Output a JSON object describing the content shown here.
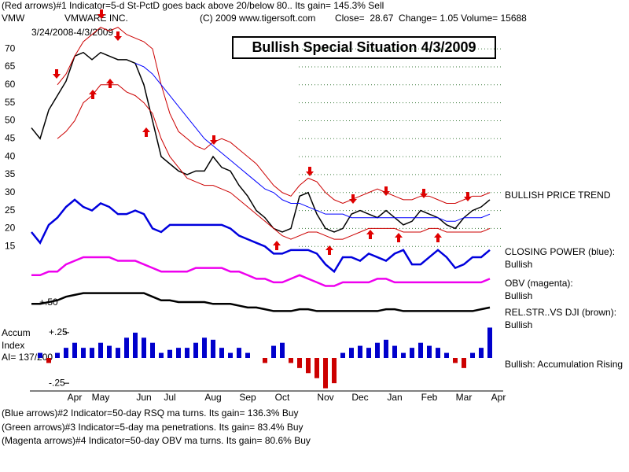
{
  "chart_data": {
    "type": "line",
    "header": [
      "(Red arrows)#1 Indicator=5-d St-PctD goes back above 20/below 80.. Its gain= 145.3% Sell",
      "VMW",
      "VMWARE INC.",
      "(C) 2009 www.tigersoft.com",
      "Close=  28.67  Change= 1.05 Volume= 15688",
      "3/24/2008-4/3/2009"
    ],
    "title": "Bullish Special Situation 4/3/2009",
    "annotations": [
      "BULLISH PRICE TREND",
      "CLOSING POWER (blue):",
      "Bullish",
      "OBV (magenta):",
      "Bullish",
      "REL.STR..VS DJI (brown):",
      "Bullish",
      "Bullish: Accumulation Rising",
      "Accum",
      "Index",
      "AI= 137/200",
      "+.50"
    ],
    "footer": [
      "(Blue arrows)#2 Indicator=50-day RSQ ma turns. Its gain= 136.3% Buy",
      "(Green arrows)#3 Indicator=5-day ma penetrations. Its gain= 83.4% Buy",
      "(Magenta arrows)#4 Indicator=50-day OBV ma turns. Its gain= 80.6% Buy"
    ],
    "categories": [
      null,
      null,
      null,
      null,
      null,
      "Apr",
      null,
      null,
      "May",
      null,
      null,
      null,
      null,
      "Jun",
      null,
      null,
      "Jul",
      null,
      null,
      null,
      null,
      "Aug",
      null,
      null,
      null,
      "Sep",
      null,
      null,
      null,
      "Oct",
      null,
      null,
      null,
      null,
      "Nov",
      null,
      null,
      null,
      "Dec",
      null,
      null,
      null,
      "Jan",
      null,
      null,
      null,
      "Feb",
      null,
      null,
      null,
      "Mar",
      null,
      null,
      null,
      "Apr"
    ],
    "ylim": [
      -4,
      72
    ],
    "yticks": [
      15,
      20,
      25,
      30,
      35,
      40,
      45,
      50,
      55,
      60,
      65,
      70
    ],
    "y2lim": [
      -0.35,
      0.35
    ],
    "y2ticks": [
      {
        "value": 0.25,
        "label": "+.25"
      },
      {
        "value": -0.25,
        "label": "-.25"
      }
    ],
    "grid": true,
    "series": [
      {
        "name": "Price",
        "color": "#000000",
        "values": [
          48,
          45,
          53,
          57,
          61,
          68,
          69,
          67,
          69,
          68,
          67,
          67,
          66,
          60,
          50,
          40,
          38,
          36,
          35,
          36,
          36,
          40,
          37,
          36,
          32,
          29,
          25,
          23,
          20,
          19,
          20,
          29,
          30,
          24,
          20,
          19,
          20,
          24,
          25,
          24,
          23,
          25,
          23,
          21,
          22,
          25,
          24,
          23,
          21,
          20,
          23,
          25,
          26,
          28,
          null
        ]
      },
      {
        "name": "Upper band",
        "color": "#cc0000",
        "values": [
          null,
          null,
          null,
          60,
          63,
          68,
          72,
          74,
          76,
          75,
          76,
          74,
          73,
          72,
          70,
          60,
          52,
          47,
          45,
          43,
          42,
          44,
          45,
          44,
          42,
          40,
          38,
          35,
          32,
          30,
          29,
          32,
          34,
          33,
          30,
          28,
          27,
          28,
          29,
          30,
          31,
          30,
          29,
          28,
          28,
          29,
          29,
          28,
          27,
          27,
          28,
          29,
          29,
          30,
          null
        ]
      },
      {
        "name": "Lower band",
        "color": "#cc0000",
        "values": [
          null,
          null,
          null,
          45,
          47,
          50,
          55,
          57,
          60,
          60,
          60,
          58,
          57,
          55,
          52,
          45,
          40,
          37,
          34,
          33,
          32,
          32,
          31,
          30,
          28,
          26,
          24,
          22,
          20,
          18,
          17,
          18,
          19,
          19,
          18,
          17,
          17,
          18,
          19,
          20,
          20,
          20,
          20,
          19,
          19,
          19,
          20,
          20,
          19,
          19,
          19,
          19,
          19,
          20,
          null
        ]
      },
      {
        "name": "Moving average",
        "color": "#0000ff",
        "values": [
          null,
          null,
          null,
          null,
          null,
          null,
          null,
          null,
          null,
          null,
          null,
          null,
          66,
          65,
          63,
          60,
          57,
          54,
          51,
          48,
          45,
          43,
          41,
          39,
          37,
          35,
          33,
          31,
          30,
          28,
          27,
          27,
          26,
          25,
          24,
          24,
          24,
          23,
          23,
          23,
          23,
          23,
          23,
          23,
          23,
          23,
          23,
          23,
          22,
          22,
          23,
          23,
          23,
          24,
          null
        ]
      },
      {
        "name": "Closing Power",
        "color": "#0000dd",
        "values": [
          19,
          16,
          21,
          23,
          26,
          28,
          26,
          25,
          27,
          26,
          24,
          24,
          25,
          24,
          20,
          19,
          21,
          21,
          21,
          21,
          21,
          21,
          21,
          20,
          18,
          17,
          16,
          15,
          13,
          13,
          14,
          14,
          14,
          13,
          10,
          8,
          12,
          12,
          11,
          13,
          12,
          11,
          13,
          14,
          10,
          10,
          12,
          14,
          12,
          9,
          10,
          12,
          12,
          14,
          null
        ]
      },
      {
        "name": "OBV",
        "color": "#ee00ee",
        "values": [
          7,
          7,
          8,
          8,
          10,
          11,
          12,
          12,
          12,
          12,
          11,
          11,
          11,
          10,
          9,
          8,
          8,
          8,
          8,
          9,
          9,
          9,
          9,
          8,
          8,
          7,
          6,
          6,
          5,
          5,
          6,
          7,
          6,
          5,
          4,
          4,
          5,
          5,
          5,
          5,
          6,
          6,
          5,
          5,
          5,
          5,
          5,
          5,
          5,
          5,
          5,
          5,
          5,
          6,
          null
        ]
      },
      {
        "name": "Rel. Str. vs DJI",
        "color": "#000000",
        "values": [
          -1,
          -1,
          -0.5,
          0,
          1,
          1.5,
          2,
          2,
          2,
          2,
          2,
          2,
          2,
          2,
          1,
          0,
          0,
          -0.5,
          -0.5,
          -0.5,
          -0.5,
          -1,
          -1,
          -1,
          -1.5,
          -2,
          -2,
          -2.5,
          -3,
          -3,
          -3,
          -2.5,
          -2.5,
          -3,
          -3,
          -3,
          -3,
          -3,
          -3,
          -3,
          -3,
          -2.5,
          -2.5,
          -3,
          -3,
          -3,
          -3,
          -3,
          -3,
          -3,
          -3,
          -3,
          -2.5,
          -2,
          null
        ]
      },
      {
        "name": "Accumulation Index",
        "color": "#0000cc",
        "axis": "y2",
        "type": "bar",
        "values": [
          0,
          0.05,
          -0.05,
          0.05,
          0.1,
          0.15,
          0.1,
          0.1,
          0.15,
          0.12,
          0.1,
          0.2,
          0.25,
          0.2,
          0.15,
          0.05,
          0.08,
          0.1,
          0.1,
          0.15,
          0.2,
          0.18,
          0.1,
          0.05,
          0.1,
          0.05,
          0,
          -0.05,
          0.12,
          0.15,
          -0.05,
          -0.1,
          -0.15,
          -0.2,
          -0.3,
          -0.25,
          0.05,
          0.1,
          0.12,
          0.1,
          0.15,
          0.18,
          0.12,
          0.05,
          0.1,
          0.15,
          0.12,
          0.1,
          0.05,
          -0.05,
          -0.1,
          0.05,
          0.1,
          0.3,
          null
        ]
      }
    ]
  }
}
